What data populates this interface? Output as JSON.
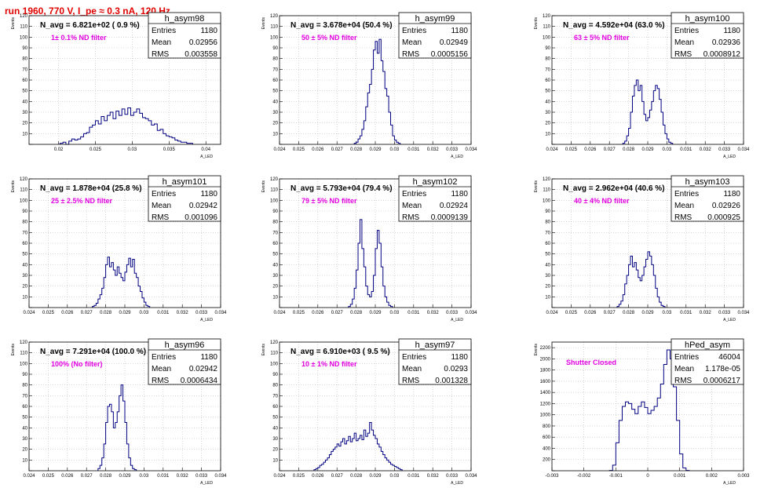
{
  "page_title": "run 1960,   770 V, I_pe ≈ 0.3 nA, 120 Hz",
  "stat_labels": {
    "entries": "Entries",
    "mean": "Mean",
    "rms": "RMS"
  },
  "chart_data": [
    {
      "type": "histogram",
      "title": "h_asym98",
      "navg_text": "N_avg = 6.821e+02 ( 0.9 %)",
      "filter_text": "1± 0.1% ND filter",
      "stats": {
        "entries": "1180",
        "mean": "0.02956",
        "rms": "0.003558"
      },
      "xlabel": "A_LED",
      "ylabel": "Events",
      "xlim": [
        0.016,
        0.042
      ],
      "ylim": [
        0,
        120
      ],
      "xticks": [
        0.02,
        0.025,
        0.03,
        0.035,
        0.04
      ],
      "xtick_labels": [
        "0.02",
        "0.025",
        "0.03",
        "0.035",
        "0.04"
      ],
      "yticks": [
        0,
        10,
        20,
        30,
        40,
        50,
        60,
        70,
        80,
        90,
        100,
        110,
        120
      ],
      "ytick_labels": [
        "",
        "10",
        "20",
        "30",
        "40",
        "50",
        "60",
        "70",
        "80",
        "90",
        "100",
        "110",
        "120"
      ],
      "bin_edges_start": 0.0202,
      "bin_width": 0.0004,
      "values": [
        1,
        2,
        0,
        3,
        5,
        4,
        5,
        7,
        10,
        11,
        16,
        18,
        22,
        19,
        26,
        22,
        27,
        30,
        24,
        31,
        27,
        33,
        28,
        34,
        27,
        30,
        33,
        29,
        25,
        24,
        22,
        18,
        19,
        13,
        14,
        10,
        8,
        7,
        6,
        4,
        3,
        2,
        2,
        1,
        1
      ]
    },
    {
      "type": "histogram",
      "title": "h_asym99",
      "navg_text": "N_avg = 3.678e+04 (50.4 %)",
      "filter_text": "50 ± 5% ND filter",
      "stats": {
        "entries": "1180",
        "mean": "0.02949",
        "rms": "0.0005156"
      },
      "xlabel": "A_LED",
      "ylabel": "Events",
      "xlim": [
        0.024,
        0.034
      ],
      "ylim": [
        0,
        120
      ],
      "xticks": [
        0.024,
        0.025,
        0.026,
        0.027,
        0.028,
        0.029,
        0.03,
        0.031,
        0.032,
        0.033,
        0.034
      ],
      "xtick_labels": [
        "0.024",
        "0.025",
        "0.026",
        "0.027",
        "0.028",
        "0.029",
        "0.03",
        "0.031",
        "0.032",
        "0.033",
        "0.034"
      ],
      "yticks": [
        0,
        10,
        20,
        30,
        40,
        50,
        60,
        70,
        80,
        90,
        100,
        110,
        120
      ],
      "ytick_labels": [
        "",
        "10",
        "20",
        "30",
        "40",
        "50",
        "60",
        "70",
        "80",
        "90",
        "100",
        "110",
        "120"
      ],
      "bin_edges_start": 0.0279,
      "bin_width": 0.0001,
      "values": [
        1,
        2,
        5,
        8,
        14,
        22,
        35,
        48,
        56,
        70,
        88,
        96,
        85,
        98,
        78,
        68,
        52,
        45,
        30,
        18,
        8,
        4,
        2,
        1
      ]
    },
    {
      "type": "histogram",
      "title": "h_asym100",
      "navg_text": "N_avg = 4.592e+04 (63.0 %)",
      "filter_text": "63 ± 5% ND filter",
      "stats": {
        "entries": "1180",
        "mean": "0.02936",
        "rms": "0.0008912"
      },
      "xlabel": "A_LED",
      "ylabel": "Events",
      "xlim": [
        0.024,
        0.034
      ],
      "ylim": [
        0,
        120
      ],
      "xticks": [
        0.024,
        0.025,
        0.026,
        0.027,
        0.028,
        0.029,
        0.03,
        0.031,
        0.032,
        0.033,
        0.034
      ],
      "xtick_labels": [
        "0.024",
        "0.025",
        "0.026",
        "0.027",
        "0.028",
        "0.029",
        "0.03",
        "0.031",
        "0.032",
        "0.033",
        "0.034"
      ],
      "yticks": [
        0,
        10,
        20,
        30,
        40,
        50,
        60,
        70,
        80,
        90,
        100,
        110,
        120
      ],
      "ytick_labels": [
        "",
        "10",
        "20",
        "30",
        "40",
        "50",
        "60",
        "70",
        "80",
        "90",
        "100",
        "110",
        "120"
      ],
      "bin_edges_start": 0.0277,
      "bin_width": 0.0001,
      "values": [
        1,
        3,
        8,
        15,
        30,
        45,
        55,
        60,
        50,
        55,
        40,
        28,
        22,
        25,
        32,
        40,
        50,
        55,
        52,
        42,
        30,
        18,
        10,
        5,
        2,
        1
      ]
    },
    {
      "type": "histogram",
      "title": "h_asym101",
      "navg_text": "N_avg = 1.878e+04 (25.8 %)",
      "filter_text": "25 ± 2.5% ND filter",
      "stats": {
        "entries": "1180",
        "mean": "0.02942",
        "rms": "0.001096"
      },
      "xlabel": "A_LED",
      "ylabel": "Events",
      "xlim": [
        0.024,
        0.034
      ],
      "ylim": [
        0,
        120
      ],
      "xticks": [
        0.024,
        0.025,
        0.026,
        0.027,
        0.028,
        0.029,
        0.03,
        0.031,
        0.032,
        0.033,
        0.034
      ],
      "xtick_labels": [
        "0.024",
        "0.025",
        "0.026",
        "0.027",
        "0.028",
        "0.029",
        "0.03",
        "0.031",
        "0.032",
        "0.033",
        "0.034"
      ],
      "yticks": [
        0,
        10,
        20,
        30,
        40,
        50,
        60,
        70,
        80,
        90,
        100,
        110,
        120
      ],
      "ytick_labels": [
        "",
        "10",
        "20",
        "30",
        "40",
        "50",
        "60",
        "70",
        "80",
        "90",
        "100",
        "110",
        "120"
      ],
      "bin_edges_start": 0.0273,
      "bin_width": 0.0001,
      "values": [
        1,
        2,
        4,
        8,
        12,
        18,
        28,
        40,
        47,
        38,
        42,
        35,
        30,
        38,
        32,
        28,
        25,
        33,
        40,
        46,
        38,
        45,
        32,
        28,
        20,
        15,
        9,
        5,
        2,
        1
      ]
    },
    {
      "type": "histogram",
      "title": "h_asym102",
      "navg_text": "N_avg = 5.793e+04 (79.4 %)",
      "filter_text": "79 ± 5% ND filter",
      "stats": {
        "entries": "1180",
        "mean": "0.02924",
        "rms": "0.0009139"
      },
      "xlabel": "A_LED",
      "ylabel": "Events",
      "xlim": [
        0.024,
        0.034
      ],
      "ylim": [
        0,
        120
      ],
      "xticks": [
        0.024,
        0.025,
        0.026,
        0.027,
        0.028,
        0.029,
        0.03,
        0.031,
        0.032,
        0.033,
        0.034
      ],
      "xtick_labels": [
        "0.024",
        "0.025",
        "0.026",
        "0.027",
        "0.028",
        "0.029",
        "0.03",
        "0.031",
        "0.032",
        "0.033",
        "0.034"
      ],
      "yticks": [
        0,
        10,
        20,
        30,
        40,
        50,
        60,
        70,
        80,
        90,
        100,
        110,
        120
      ],
      "ytick_labels": [
        "",
        "10",
        "20",
        "30",
        "40",
        "50",
        "60",
        "70",
        "80",
        "90",
        "100",
        "110",
        "120"
      ],
      "bin_edges_start": 0.0276,
      "bin_width": 0.0001,
      "values": [
        1,
        3,
        8,
        18,
        35,
        60,
        82,
        55,
        38,
        20,
        12,
        10,
        15,
        30,
        55,
        72,
        60,
        38,
        20,
        10,
        5,
        2,
        1
      ]
    },
    {
      "type": "histogram",
      "title": "h_asym103",
      "navg_text": "N_avg = 2.962e+04 (40.6 %)",
      "filter_text": "40 ± 4% ND filter",
      "stats": {
        "entries": "1180",
        "mean": "0.02926",
        "rms": "0.000925"
      },
      "xlabel": "A_LED",
      "ylabel": "Events",
      "xlim": [
        0.024,
        0.034
      ],
      "ylim": [
        0,
        120
      ],
      "xticks": [
        0.024,
        0.025,
        0.026,
        0.027,
        0.028,
        0.029,
        0.03,
        0.031,
        0.032,
        0.033,
        0.034
      ],
      "xtick_labels": [
        "0.024",
        "0.025",
        "0.026",
        "0.027",
        "0.028",
        "0.029",
        "0.03",
        "0.031",
        "0.032",
        "0.033",
        "0.034"
      ],
      "yticks": [
        0,
        10,
        20,
        30,
        40,
        50,
        60,
        70,
        80,
        90,
        100,
        110,
        120
      ],
      "ytick_labels": [
        "",
        "10",
        "20",
        "30",
        "40",
        "50",
        "60",
        "70",
        "80",
        "90",
        "100",
        "110",
        "120"
      ],
      "bin_edges_start": 0.0274,
      "bin_width": 0.0001,
      "values": [
        1,
        3,
        6,
        12,
        22,
        30,
        40,
        48,
        38,
        42,
        35,
        28,
        25,
        30,
        38,
        45,
        52,
        48,
        40,
        30,
        18,
        10,
        5,
        2,
        1
      ]
    },
    {
      "type": "histogram",
      "title": "h_asym96",
      "navg_text": "N_avg = 7.291e+04 (100.0 %)",
      "filter_text": "100% (No filter)",
      "stats": {
        "entries": "1180",
        "mean": "0.02942",
        "rms": "0.0006434"
      },
      "xlabel": "A_LED",
      "ylabel": "Events",
      "xlim": [
        0.024,
        0.034
      ],
      "ylim": [
        0,
        120
      ],
      "xticks": [
        0.024,
        0.025,
        0.026,
        0.027,
        0.028,
        0.029,
        0.03,
        0.031,
        0.032,
        0.033,
        0.034
      ],
      "xtick_labels": [
        "0.024",
        "0.025",
        "0.026",
        "0.027",
        "0.028",
        "0.029",
        "0.03",
        "0.031",
        "0.032",
        "0.033",
        "0.034"
      ],
      "yticks": [
        0,
        10,
        20,
        30,
        40,
        50,
        60,
        70,
        80,
        90,
        100,
        110,
        120
      ],
      "ytick_labels": [
        "",
        "10",
        "20",
        "30",
        "40",
        "50",
        "60",
        "70",
        "80",
        "90",
        "100",
        "110",
        "120"
      ],
      "bin_edges_start": 0.0276,
      "bin_width": 0.0001,
      "values": [
        2,
        5,
        12,
        25,
        45,
        60,
        62,
        55,
        40,
        45,
        55,
        70,
        80,
        65,
        45,
        25,
        12,
        5,
        2,
        1
      ]
    },
    {
      "type": "histogram",
      "title": "h_asym97",
      "navg_text": "N_avg = 6.910e+03 ( 9.5 %)",
      "filter_text": "10 ± 1% ND filter",
      "stats": {
        "entries": "1180",
        "mean": "0.0293",
        "rms": "0.001328"
      },
      "xlabel": "A_LED",
      "ylabel": "Events",
      "xlim": [
        0.024,
        0.034
      ],
      "ylim": [
        0,
        120
      ],
      "xticks": [
        0.024,
        0.025,
        0.026,
        0.027,
        0.028,
        0.029,
        0.03,
        0.031,
        0.032,
        0.033,
        0.034
      ],
      "xtick_labels": [
        "0.024",
        "0.025",
        "0.026",
        "0.027",
        "0.028",
        "0.029",
        "0.03",
        "0.031",
        "0.032",
        "0.033",
        "0.034"
      ],
      "yticks": [
        0,
        10,
        20,
        30,
        40,
        50,
        60,
        70,
        80,
        90,
        100,
        110,
        120
      ],
      "ytick_labels": [
        "",
        "10",
        "20",
        "30",
        "40",
        "50",
        "60",
        "70",
        "80",
        "90",
        "100",
        "110",
        "120"
      ],
      "bin_edges_start": 0.0258,
      "bin_width": 0.0001,
      "values": [
        1,
        2,
        3,
        5,
        6,
        8,
        10,
        12,
        15,
        18,
        20,
        22,
        25,
        23,
        27,
        30,
        25,
        28,
        32,
        27,
        30,
        35,
        28,
        30,
        33,
        29,
        38,
        32,
        35,
        45,
        38,
        33,
        30,
        25,
        22,
        18,
        15,
        12,
        10,
        8,
        6,
        5,
        4,
        3,
        2,
        1
      ]
    },
    {
      "type": "histogram",
      "title": "hPed_asym",
      "navg_text": "",
      "filter_text": "Shutter Closed",
      "stats": {
        "entries": "46004",
        "mean": "1.178e-05",
        "rms": "0.0006217"
      },
      "xlabel": "A_LED",
      "ylabel": "Events",
      "xlim": [
        -0.003,
        0.003
      ],
      "ylim": [
        0,
        2300
      ],
      "xticks": [
        -0.003,
        -0.002,
        -0.001,
        0,
        0.001,
        0.002,
        0.003
      ],
      "xtick_labels": [
        "-0.003",
        "-0.002",
        "-0.001",
        "0",
        "0.001",
        "0.002",
        "0.003"
      ],
      "yticks": [
        0,
        200,
        400,
        600,
        800,
        1000,
        1200,
        1400,
        1600,
        1800,
        2000,
        2200
      ],
      "ytick_labels": [
        "",
        "200",
        "400",
        "600",
        "800",
        "1000",
        "1200",
        "1400",
        "1600",
        "1800",
        "2000",
        "2200"
      ],
      "bin_edges_start": -0.0012,
      "bin_width": 0.0001,
      "values": [
        5,
        100,
        500,
        900,
        1150,
        1230,
        1200,
        1100,
        1020,
        1150,
        1230,
        1130,
        1020,
        1080,
        1150,
        1300,
        1550,
        1900,
        2160,
        2000,
        1500,
        900,
        300,
        50,
        5
      ]
    }
  ]
}
